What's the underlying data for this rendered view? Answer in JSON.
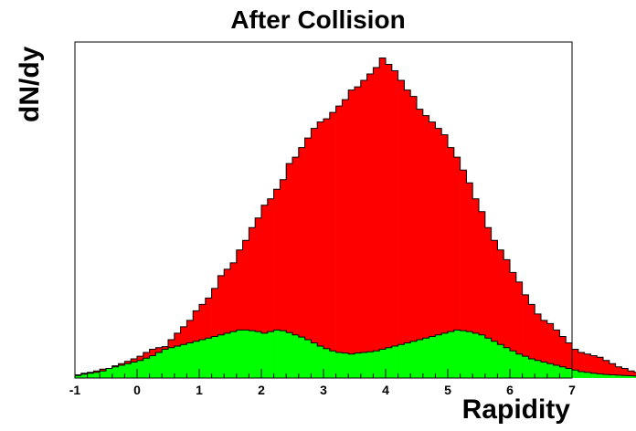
{
  "chart_data": {
    "type": "histogram",
    "title": "After Collision",
    "xlabel": "Rapidity",
    "ylabel": "dN/dy",
    "xlim": [
      -1,
      7
    ],
    "ylim": [
      0,
      1.05
    ],
    "x_ticks": [
      "-1",
      "0",
      "1",
      "2",
      "3",
      "4",
      "5",
      "6",
      "7"
    ],
    "y_ticks_shown": false,
    "bin_width": 0.1,
    "series": [
      {
        "color": "#ff0000",
        "values": [
          0.01,
          0.015,
          0.018,
          0.022,
          0.028,
          0.03,
          0.038,
          0.045,
          0.052,
          0.06,
          0.068,
          0.08,
          0.09,
          0.095,
          0.098,
          0.12,
          0.14,
          0.16,
          0.18,
          0.21,
          0.23,
          0.25,
          0.28,
          0.32,
          0.34,
          0.36,
          0.4,
          0.43,
          0.47,
          0.5,
          0.54,
          0.56,
          0.59,
          0.62,
          0.67,
          0.69,
          0.72,
          0.75,
          0.78,
          0.8,
          0.81,
          0.83,
          0.85,
          0.87,
          0.9,
          0.91,
          0.93,
          0.95,
          0.97,
          1.0,
          0.98,
          0.96,
          0.93,
          0.9,
          0.88,
          0.84,
          0.82,
          0.8,
          0.78,
          0.76,
          0.72,
          0.69,
          0.65,
          0.61,
          0.56,
          0.52,
          0.47,
          0.43,
          0.4,
          0.37,
          0.33,
          0.3,
          0.26,
          0.23,
          0.2,
          0.18,
          0.17,
          0.15,
          0.13,
          0.11,
          0.09,
          0.08,
          0.075,
          0.07,
          0.065,
          0.055,
          0.045,
          0.035,
          0.03,
          0.022,
          0.018,
          0.014,
          0.01,
          0.008,
          0.007,
          0.006,
          0.005,
          0.005,
          0.004,
          0.004
        ]
      },
      {
        "color": "#00ff00",
        "values": [
          0.008,
          0.012,
          0.015,
          0.018,
          0.022,
          0.03,
          0.035,
          0.04,
          0.045,
          0.05,
          0.055,
          0.062,
          0.07,
          0.08,
          0.09,
          0.095,
          0.1,
          0.105,
          0.11,
          0.115,
          0.12,
          0.125,
          0.13,
          0.135,
          0.14,
          0.145,
          0.15,
          0.15,
          0.148,
          0.145,
          0.14,
          0.145,
          0.15,
          0.148,
          0.142,
          0.135,
          0.128,
          0.12,
          0.11,
          0.1,
          0.092,
          0.085,
          0.08,
          0.078,
          0.075,
          0.078,
          0.08,
          0.082,
          0.085,
          0.09,
          0.095,
          0.1,
          0.105,
          0.11,
          0.115,
          0.12,
          0.125,
          0.13,
          0.135,
          0.14,
          0.145,
          0.15,
          0.148,
          0.145,
          0.14,
          0.135,
          0.125,
          0.115,
          0.105,
          0.095,
          0.085,
          0.075,
          0.068,
          0.06,
          0.055,
          0.05,
          0.045,
          0.04,
          0.035,
          0.03,
          0.025,
          0.02,
          0.018,
          0.015,
          0.013,
          0.011,
          0.01,
          0.009,
          0.008,
          0.007,
          0.006,
          0.006,
          0.005,
          0.005,
          0.004,
          0.004,
          0.003,
          0.003,
          0.003,
          0.003
        ]
      }
    ]
  }
}
